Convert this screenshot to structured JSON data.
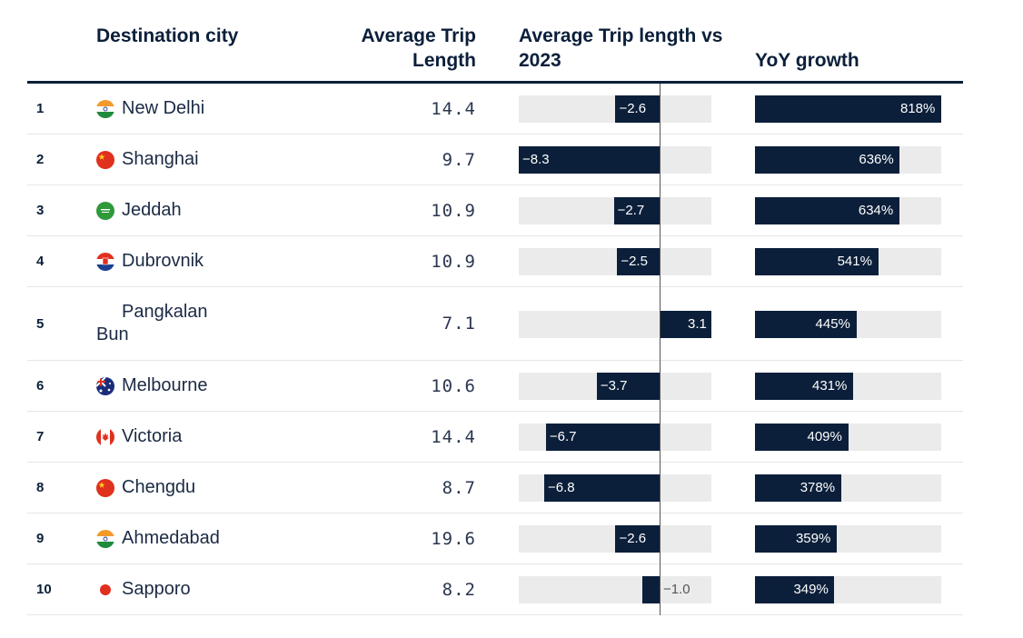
{
  "header": {
    "city": "Destination city",
    "avg": "Average Trip Length",
    "vs": "Average Trip length vs 2023",
    "yoy": "YoY growth"
  },
  "colors": {
    "bar": "#0b1f3a",
    "track": "#ebebeb"
  },
  "chart_data": {
    "type": "table",
    "vs_range": [
      -8.3,
      3.1
    ],
    "yoy_max": 818,
    "rows": [
      {
        "rank": "1",
        "city": "New Delhi",
        "flag": "india-flag-icon",
        "avg": "14.4",
        "vs": -2.6,
        "vs_label": "−2.6",
        "yoy": 818,
        "yoy_label": "818%"
      },
      {
        "rank": "2",
        "city": "Shanghai",
        "flag": "china-flag-icon",
        "avg": "9.7",
        "vs": -8.3,
        "vs_label": "−8.3",
        "yoy": 636,
        "yoy_label": "636%"
      },
      {
        "rank": "3",
        "city": "Jeddah",
        "flag": "saudi-arabia-flag-icon",
        "avg": "10.9",
        "vs": -2.7,
        "vs_label": "−2.7",
        "yoy": 634,
        "yoy_label": "634%"
      },
      {
        "rank": "4",
        "city": "Dubrovnik",
        "flag": "croatia-flag-icon",
        "avg": "10.9",
        "vs": -2.5,
        "vs_label": "−2.5",
        "yoy": 541,
        "yoy_label": "541%"
      },
      {
        "rank": "5",
        "city": "Pangkalan Bun",
        "flag": "indonesia-flag-icon",
        "avg": "7.1",
        "vs": 3.1,
        "vs_label": "3.1",
        "yoy": 445,
        "yoy_label": "445%"
      },
      {
        "rank": "6",
        "city": "Melbourne",
        "flag": "australia-flag-icon",
        "avg": "10.6",
        "vs": -3.7,
        "vs_label": "−3.7",
        "yoy": 431,
        "yoy_label": "431%"
      },
      {
        "rank": "7",
        "city": "Victoria",
        "flag": "canada-flag-icon",
        "avg": "14.4",
        "vs": -6.7,
        "vs_label": "−6.7",
        "yoy": 409,
        "yoy_label": "409%"
      },
      {
        "rank": "8",
        "city": "Chengdu",
        "flag": "china-flag-icon",
        "avg": "8.7",
        "vs": -6.8,
        "vs_label": "−6.8",
        "yoy": 378,
        "yoy_label": "378%"
      },
      {
        "rank": "9",
        "city": "Ahmedabad",
        "flag": "india-flag-icon",
        "avg": "19.6",
        "vs": -2.6,
        "vs_label": "−2.6",
        "yoy": 359,
        "yoy_label": "359%"
      },
      {
        "rank": "10",
        "city": "Sapporo",
        "flag": "japan-flag-icon",
        "avg": "8.2",
        "vs": -1.0,
        "vs_label": "−1.0",
        "yoy": 349,
        "yoy_label": "349%"
      }
    ]
  }
}
